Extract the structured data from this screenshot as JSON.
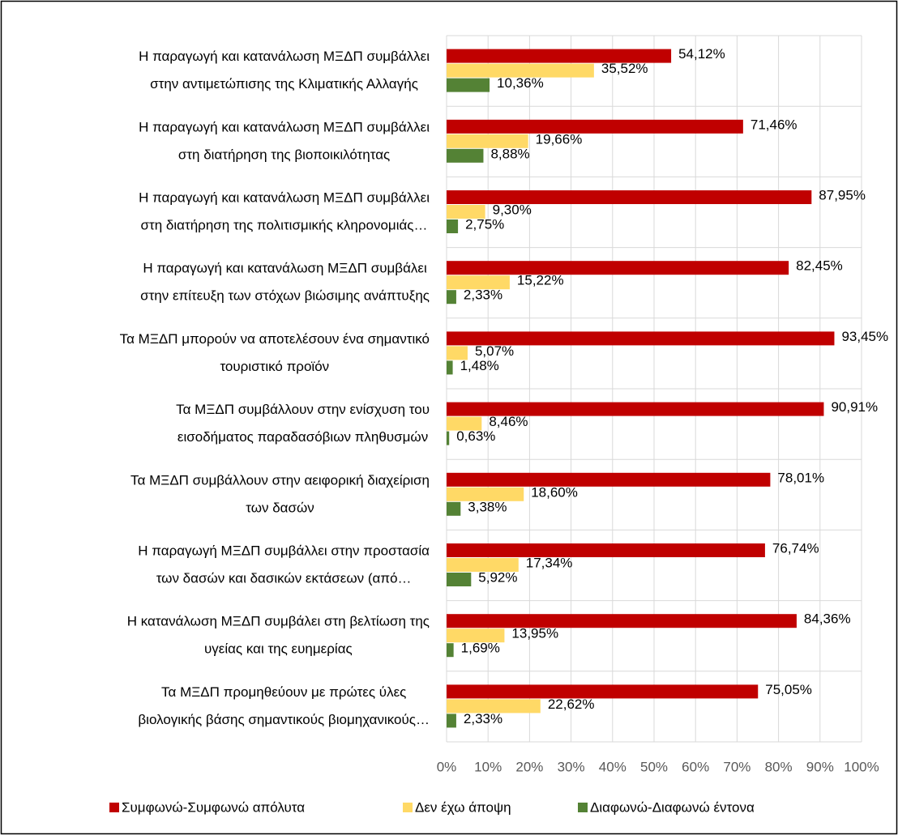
{
  "chart_data": {
    "type": "hbar",
    "categories": [
      [
        "Η παραγωγή και κατανάλωση ΜΞΔΠ συμβάλλει",
        "στην αντιμετώπισης της Κλιματικής Αλλαγής"
      ],
      [
        "Η παραγωγή και κατανάλωση ΜΞΔΠ συμβάλλει",
        "στη διατήρηση της βιοποικιλότητας"
      ],
      [
        "Η παραγωγή και κατανάλωση ΜΞΔΠ συμβάλλει",
        "στη διατήρηση της πολιτισμικής κληρονομιάς…"
      ],
      [
        "Η παραγωγή και κατανάλωση ΜΞΔΠ συμβάλει",
        "στην επίτευξη των στόχων βιώσιμης ανάπτυξης"
      ],
      [
        "Τα ΜΞΔΠ μπορούν να αποτελέσουν ένα σημαντικό",
        "τουριστικό προϊόν"
      ],
      [
        "Τα ΜΞΔΠ συμβάλλουν στην ενίσχυση του",
        "εισοδήματος παραδασόβιων πληθυσμών"
      ],
      [
        "Τα ΜΞΔΠ συμβάλλουν στην αειφορική διαχείριση",
        "των δασών"
      ],
      [
        "Η παραγωγή ΜΞΔΠ συμβάλλει στην προστασία",
        "των δασών και δασικών εκτάσεων (από…"
      ],
      [
        "Η κατανάλωση ΜΞΔΠ συμβάλει στη βελτίωση της",
        "υγείας και της ευημερίας"
      ],
      [
        "Τα ΜΞΔΠ προμηθεύουν με πρώτες ύλες",
        "βιολογικής βάσης σημαντικούς βιομηχανικούς…"
      ]
    ],
    "series": [
      {
        "name": "Συμφωνώ-Συμφωνώ απόλυτα",
        "color": "#c00000",
        "values": [
          54.12,
          71.46,
          87.95,
          82.45,
          93.45,
          90.91,
          78.01,
          76.74,
          84.36,
          75.05
        ],
        "value_labels": [
          "54,12%",
          "71,46%",
          "87,95%",
          "82,45%",
          "93,45%",
          "90,91%",
          "78,01%",
          "76,74%",
          "84,36%",
          "75,05%"
        ]
      },
      {
        "name": "Δεν έχω άποψη",
        "color": "#ffd966",
        "values": [
          35.52,
          19.66,
          9.3,
          15.22,
          5.07,
          8.46,
          18.6,
          17.34,
          13.95,
          22.62
        ],
        "value_labels": [
          "35,52%",
          "19,66%",
          "9,30%",
          "15,22%",
          "5,07%",
          "8,46%",
          "18,60%",
          "17,34%",
          "13,95%",
          "22,62%"
        ]
      },
      {
        "name": "Διαφωνώ-Διαφωνώ έντονα",
        "color": "#548235",
        "values": [
          10.36,
          8.88,
          2.75,
          2.33,
          1.48,
          0.63,
          3.38,
          5.92,
          1.69,
          2.33
        ],
        "value_labels": [
          "10,36%",
          "8,88%",
          "2,75%",
          "2,33%",
          "1,48%",
          "0,63%",
          "3,38%",
          "5,92%",
          "1,69%",
          "2,33%"
        ]
      }
    ],
    "xlim": [
      0,
      100
    ],
    "xticks": [
      {
        "value": 0,
        "label": "0%"
      },
      {
        "value": 10,
        "label": "10%"
      },
      {
        "value": 20,
        "label": "20%"
      },
      {
        "value": 30,
        "label": "30%"
      },
      {
        "value": 40,
        "label": "40%"
      },
      {
        "value": 50,
        "label": "50%"
      },
      {
        "value": 60,
        "label": "60%"
      },
      {
        "value": 70,
        "label": "70%"
      },
      {
        "value": 80,
        "label": "80%"
      },
      {
        "value": 90,
        "label": "90%"
      },
      {
        "value": 100,
        "label": "100%"
      }
    ],
    "grid": true,
    "legend": "bottom"
  }
}
